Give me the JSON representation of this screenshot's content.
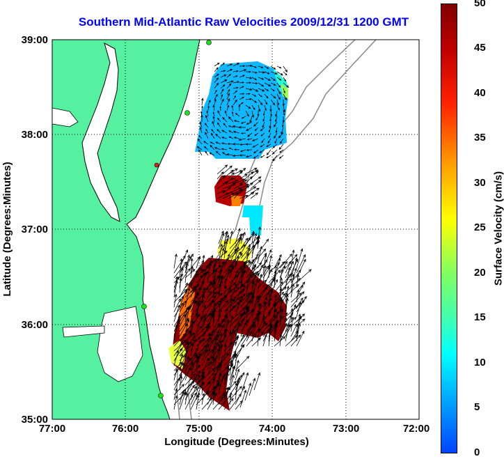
{
  "title": "Southern Mid-Atlantic Raw Velocities 2009/12/31 1200 GMT",
  "map": {
    "x_axis": {
      "label": "Longitude (Degrees:Minutes)",
      "ticks": [
        "77:00",
        "76:00",
        "75:00",
        "74:00",
        "73:00",
        "72:00"
      ]
    },
    "y_axis": {
      "label": "Latitude (Degrees:Minutes)",
      "ticks": [
        "39:00",
        "38:00",
        "37:00",
        "36:00",
        "35:00"
      ]
    },
    "grid": "dotted",
    "land_color": "#55f0a0",
    "extent": {
      "lon_min": -77,
      "lon_max": -72,
      "lat_min": 35,
      "lat_max": 39
    }
  },
  "colorbar": {
    "label": "Surface Velocity (cm/s)",
    "ticks": [
      "50",
      "45",
      "40",
      "35",
      "30",
      "25",
      "20",
      "15",
      "10",
      "5",
      "0"
    ],
    "min": 0,
    "max": 50
  },
  "regions": [
    {
      "name": "northern-field",
      "dominant_speed_cm_s": 8
    },
    {
      "name": "middle-patch",
      "dominant_speed_cm_s": 45
    },
    {
      "name": "southern-field",
      "dominant_speed_cm_s": 47
    }
  ]
}
